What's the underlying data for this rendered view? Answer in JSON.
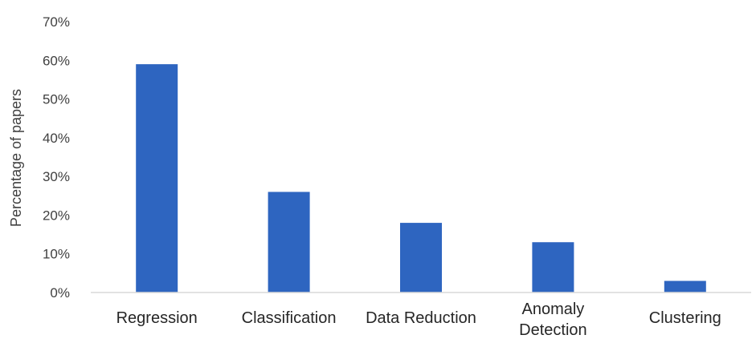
{
  "chart_data": {
    "type": "bar",
    "title": "",
    "xlabel": "",
    "ylabel": "Percentage of papers",
    "categories": [
      [
        "Regression"
      ],
      [
        "Classification"
      ],
      [
        "Data Reduction"
      ],
      [
        "Anomaly",
        "Detection"
      ],
      [
        "Clustering"
      ]
    ],
    "values": [
      59,
      26,
      18,
      13,
      3
    ],
    "value_unit": "%",
    "ylim": [
      0,
      70
    ],
    "yticks": [
      0,
      10,
      20,
      30,
      40,
      50,
      60,
      70
    ],
    "ytick_labels": [
      "0%",
      "10%",
      "20%",
      "30%",
      "40%",
      "50%",
      "60%",
      "70%"
    ],
    "grid": false,
    "legend": "none",
    "colors": {
      "bar": "#2E65C0",
      "axis": "#D9D9D9",
      "tick_text": "#404040",
      "category_text": "#262626"
    }
  }
}
